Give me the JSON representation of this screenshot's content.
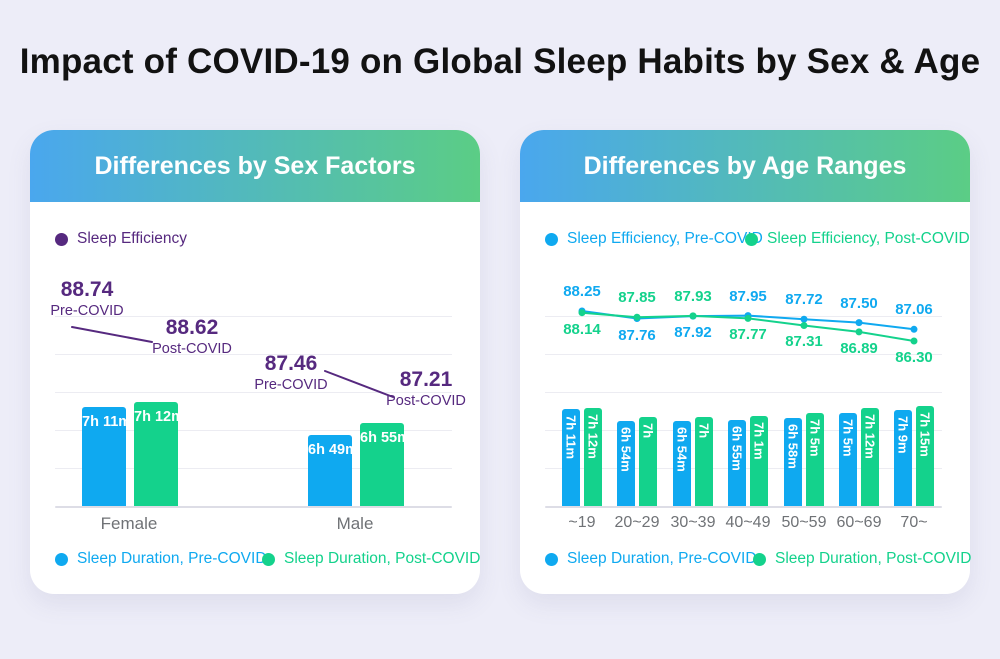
{
  "title": "Impact of COVID-19 on Global Sleep Habits by Sex & Age",
  "colors": {
    "page_bg": "#EDEDF8",
    "card_bg": "#FFFFFF",
    "header_gradient_start": "#4AA7EE",
    "header_gradient_end": "#5BCD85",
    "pre": "#0FA9F0",
    "post": "#14D28C",
    "efficiency": "#56297F",
    "gridline": "#ECECF2",
    "axis_line": "#DDDDE6",
    "axis_label_gray": "#6F7276",
    "header_text": "#FFFFFF",
    "title_text": "#121212"
  },
  "sex_card": {
    "header": "Differences by Sex Factors",
    "legend_top": [
      {
        "label": "Sleep Efficiency",
        "series": "efficiency"
      }
    ],
    "legend_bottom": [
      {
        "label": "Sleep Duration, Pre-COVID",
        "series": "pre"
      },
      {
        "label": "Sleep Duration, Post-COVID",
        "series": "post"
      }
    ],
    "annotations": [
      {
        "value": "88.74",
        "label": "Pre-COVID"
      },
      {
        "value": "88.62",
        "label": "Post-COVID"
      },
      {
        "value": "87.46",
        "label": "Pre-COVID"
      },
      {
        "value": "87.21",
        "label": "Post-COVID"
      }
    ],
    "groups": [
      {
        "label": "Female",
        "duration_pre": "7h 11m",
        "duration_post": "7h 12m"
      },
      {
        "label": "Male",
        "duration_pre": "6h 49m",
        "duration_post": "6h 55m"
      }
    ]
  },
  "age_card": {
    "header": "Differences by Age Ranges",
    "legend_top": [
      {
        "label": "Sleep Efficiency, Pre-COVID",
        "series": "pre"
      },
      {
        "label": "Sleep Efficiency, Post-COVID",
        "series": "post"
      }
    ],
    "legend_bottom": [
      {
        "label": "Sleep Duration, Pre-COVID",
        "series": "pre"
      },
      {
        "label": "Sleep Duration, Post-COVID",
        "series": "post"
      }
    ],
    "groups": [
      {
        "label": "~19",
        "eff_pre": 88.25,
        "eff_post": 88.14,
        "pre_label_on_top": true,
        "duration_pre": "7h 11m",
        "duration_pre_min": 431,
        "duration_post": "7h 12m",
        "duration_post_min": 432
      },
      {
        "label": "20~29",
        "eff_pre": 87.76,
        "eff_post": 87.85,
        "pre_label_on_top": false,
        "duration_pre": "6h 54m",
        "duration_pre_min": 414,
        "duration_post": "7h",
        "duration_post_min": 420
      },
      {
        "label": "30~39",
        "eff_pre": 87.92,
        "eff_post": 87.93,
        "pre_label_on_top": false,
        "duration_pre": "6h 54m",
        "duration_pre_min": 414,
        "duration_post": "7h",
        "duration_post_min": 420
      },
      {
        "label": "40~49",
        "eff_pre": 87.95,
        "eff_post": 87.77,
        "pre_label_on_top": true,
        "duration_pre": "6h 55m",
        "duration_pre_min": 415,
        "duration_post": "7h 1m",
        "duration_post_min": 421
      },
      {
        "label": "50~59",
        "eff_pre": 87.72,
        "eff_post": 87.31,
        "pre_label_on_top": true,
        "duration_pre": "6h 58m",
        "duration_pre_min": 418,
        "duration_post": "7h 5m",
        "duration_post_min": 425
      },
      {
        "label": "60~69",
        "eff_pre": 87.5,
        "eff_post": 86.89,
        "pre_label_on_top": true,
        "duration_pre": "7h 5m",
        "duration_pre_min": 425,
        "duration_post": "7h 12m",
        "duration_post_min": 432
      },
      {
        "label": "70~",
        "eff_pre": 87.06,
        "eff_post": 86.3,
        "pre_label_on_top": true,
        "duration_pre": "7h 9m",
        "duration_pre_min": 429,
        "duration_post": "7h 15m",
        "duration_post_min": 435
      }
    ]
  },
  "chart_data": [
    {
      "type": "bar",
      "title": "Differences by Sex Factors",
      "categories": [
        "Female",
        "Male"
      ],
      "series": [
        {
          "name": "Sleep Efficiency, Pre-COVID",
          "values": [
            88.74,
            87.46
          ]
        },
        {
          "name": "Sleep Efficiency, Post-COVID",
          "values": [
            88.62,
            87.21
          ]
        },
        {
          "name": "Sleep Duration, Pre-COVID (minutes)",
          "values": [
            431,
            409
          ],
          "labels": [
            "7h 11m",
            "6h 49m"
          ]
        },
        {
          "name": "Sleep Duration, Post-COVID (minutes)",
          "values": [
            432,
            415
          ],
          "labels": [
            "7h 12m",
            "6h 55m"
          ]
        }
      ],
      "legend_position": "efficiency legend top, duration legend bottom",
      "grid": true
    },
    {
      "type": "line",
      "title": "Differences by Age Ranges",
      "categories": [
        "~19",
        "20~29",
        "30~39",
        "40~49",
        "50~59",
        "60~69",
        "70~"
      ],
      "series": [
        {
          "name": "Sleep Efficiency, Pre-COVID",
          "values": [
            88.25,
            87.76,
            87.92,
            87.95,
            87.72,
            87.5,
            87.06
          ]
        },
        {
          "name": "Sleep Efficiency, Post-COVID",
          "values": [
            88.14,
            87.85,
            87.93,
            87.77,
            87.31,
            86.89,
            86.3
          ]
        },
        {
          "name": "Sleep Duration, Pre-COVID (minutes)",
          "values": [
            431,
            414,
            414,
            415,
            418,
            425,
            429
          ],
          "labels": [
            "7h 11m",
            "6h 54m",
            "6h 54m",
            "6h 55m",
            "6h 58m",
            "7h 5m",
            "7h 9m"
          ]
        },
        {
          "name": "Sleep Duration, Post-COVID (minutes)",
          "values": [
            432,
            420,
            420,
            421,
            425,
            432,
            435
          ],
          "labels": [
            "7h 12m",
            "7h",
            "7h",
            "7h 1m",
            "7h 5m",
            "7h 12m",
            "7h 15m"
          ]
        }
      ],
      "legend_position": "efficiency legend top, duration legend bottom",
      "grid": true
    }
  ]
}
